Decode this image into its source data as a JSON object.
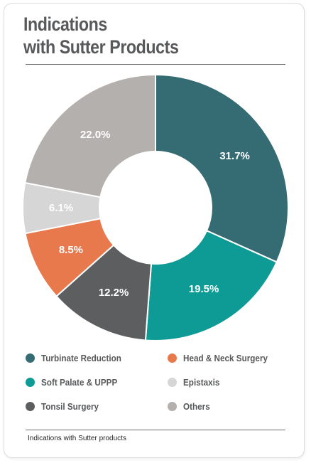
{
  "title_lines": [
    "Indications",
    "with Sutter Products"
  ],
  "caption": "Indications with Sutter products",
  "chart_data": {
    "type": "pie",
    "donut": true,
    "title": "Indications with Sutter Products",
    "unit": "%",
    "slices": [
      {
        "name": "Turbinate Reduction",
        "value": 31.7,
        "label": "31.7%",
        "color": "#356b73"
      },
      {
        "name": "Soft Palate & UPPP",
        "value": 19.5,
        "label": "19.5%",
        "color": "#0e9b96"
      },
      {
        "name": "Tonsil Surgery",
        "value": 12.2,
        "label": "12.2%",
        "color": "#5d5e60"
      },
      {
        "name": "Head & Neck Surgery",
        "value": 8.5,
        "label": "8.5%",
        "color": "#e8794d"
      },
      {
        "name": "Epistaxis",
        "value": 6.1,
        "label": "6.1%",
        "color": "#d6d6d6"
      },
      {
        "name": "Others",
        "value": 22.0,
        "label": "22.0%",
        "color": "#b4b0ad"
      }
    ],
    "legend": {
      "placement": "bottom",
      "columns": 2,
      "order": [
        "Turbinate Reduction",
        "Head & Neck Surgery",
        "Soft Palate & UPPP",
        "Epistaxis",
        "Tonsil Surgery",
        "Others"
      ]
    }
  }
}
